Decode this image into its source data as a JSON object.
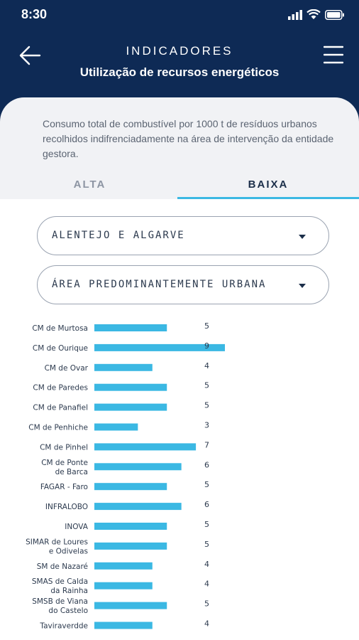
{
  "status": {
    "time": "8:30"
  },
  "header": {
    "title": "INDICADORES",
    "subtitle": "Utilização de recursos energéticos"
  },
  "description": "Consumo total de combustível por 1000 t de resíduos urbanos recolhidos indifrenciadamente na área de intervenção da entidade gestora.",
  "tabs": [
    {
      "label": "ALTA",
      "selected": false
    },
    {
      "label": "BAIXA",
      "selected": true
    }
  ],
  "filters": {
    "region": "ALENTEJO E ALGARVE",
    "area": "ÁREA PREDOMINANTEMENTE URBANA"
  },
  "colors": {
    "header_bg": "#0e2a55",
    "accent": "#3bb8e3",
    "bar": "#3bb8e3"
  },
  "icons": {
    "back": "arrow-left-icon",
    "menu": "hamburger-menu-icon"
  },
  "chart_data": {
    "type": "bar",
    "orientation": "horizontal",
    "categories": [
      [
        "CM de Murtosa"
      ],
      [
        "CM de Ourique"
      ],
      [
        "CM de Ovar"
      ],
      [
        "CM de Paredes"
      ],
      [
        "CM de Panafiel"
      ],
      [
        "CM de Penhiche"
      ],
      [
        "CM de Pinhel"
      ],
      [
        "CM de Ponte",
        "de Barca"
      ],
      [
        "FAGAR - Faro"
      ],
      [
        "INFRALOBO"
      ],
      [
        "INOVA"
      ],
      [
        "SIMAR de Loures",
        "e Odivelas"
      ],
      [
        "SM de Nazaré"
      ],
      [
        "SMAS de Calda",
        "da Rainha"
      ],
      [
        "SMSB de Viana",
        "do Castelo"
      ],
      [
        "Taviraverdde"
      ]
    ],
    "values": [
      5,
      9,
      4,
      5,
      5,
      3,
      7,
      6,
      5,
      6,
      5,
      5,
      4,
      4,
      5,
      4
    ],
    "labels": [
      "5",
      "9",
      "4",
      "5",
      "5",
      "3",
      "7",
      "6",
      "5",
      "6",
      "5",
      "5",
      "4",
      "4",
      "5",
      "4"
    ],
    "xlim": [
      0,
      9
    ],
    "title": "",
    "xlabel": "",
    "ylabel": ""
  }
}
